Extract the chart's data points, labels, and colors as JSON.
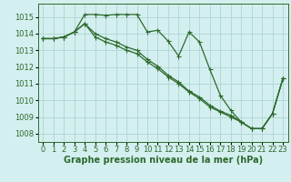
{
  "background_color": "#d4efef",
  "grid_color": "#aed4d4",
  "line_color": "#2d6a2d",
  "marker_color": "#2d6a2d",
  "xlabel": "Graphe pression niveau de la mer (hPa)",
  "xlabel_fontsize": 7,
  "tick_fontsize": 6,
  "xlim": [
    -0.5,
    23.5
  ],
  "ylim": [
    1007.5,
    1015.8
  ],
  "yticks": [
    1008,
    1009,
    1010,
    1011,
    1012,
    1013,
    1014,
    1015
  ],
  "xticks": [
    0,
    1,
    2,
    3,
    4,
    5,
    6,
    7,
    8,
    9,
    10,
    11,
    12,
    13,
    14,
    15,
    16,
    17,
    18,
    19,
    20,
    21,
    22,
    23
  ],
  "series1_x": [
    0,
    1,
    2,
    3,
    4,
    5,
    6,
    7,
    8,
    9,
    10,
    11,
    12,
    13,
    14,
    15,
    16,
    17,
    18,
    19,
    20,
    21,
    22,
    23
  ],
  "series1_y": [
    1013.7,
    1013.7,
    1013.8,
    1014.1,
    1015.15,
    1015.15,
    1015.1,
    1015.15,
    1015.15,
    1015.15,
    1014.1,
    1014.2,
    1013.55,
    1012.65,
    1014.1,
    1013.5,
    1011.85,
    1010.3,
    1009.4,
    1008.7,
    1008.3,
    1008.3,
    1009.2,
    1011.3
  ],
  "series2_x": [
    0,
    1,
    2,
    3,
    4,
    5,
    6,
    7,
    8,
    9,
    10,
    11,
    12,
    13,
    14,
    15,
    16,
    17,
    18,
    19,
    20,
    21,
    22,
    23
  ],
  "series2_y": [
    1013.7,
    1013.7,
    1013.8,
    1014.1,
    1014.6,
    1014.0,
    1013.7,
    1013.5,
    1013.2,
    1013.0,
    1012.45,
    1012.05,
    1011.5,
    1011.1,
    1010.55,
    1010.2,
    1009.7,
    1009.35,
    1009.1,
    1008.7,
    1008.3,
    1008.3,
    1009.2,
    1011.3
  ],
  "series3_x": [
    0,
    1,
    2,
    3,
    4,
    5,
    6,
    7,
    8,
    9,
    10,
    11,
    12,
    13,
    14,
    15,
    16,
    17,
    18,
    19,
    20,
    21,
    22,
    23
  ],
  "series3_y": [
    1013.7,
    1013.7,
    1013.8,
    1014.1,
    1014.6,
    1013.8,
    1013.5,
    1013.3,
    1013.0,
    1012.8,
    1012.3,
    1011.9,
    1011.4,
    1011.0,
    1010.5,
    1010.1,
    1009.6,
    1009.3,
    1009.0,
    1008.7,
    1008.3,
    1008.3,
    1009.2,
    1011.3
  ]
}
